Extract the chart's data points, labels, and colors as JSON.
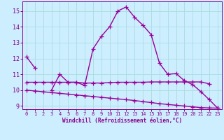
{
  "x": [
    0,
    1,
    2,
    3,
    4,
    5,
    6,
    7,
    8,
    9,
    10,
    11,
    12,
    13,
    14,
    15,
    16,
    17,
    18,
    19,
    20,
    21,
    22,
    23
  ],
  "line1": [
    12.1,
    11.4,
    null,
    10.0,
    11.0,
    10.5,
    10.5,
    10.3,
    12.6,
    13.4,
    14.0,
    15.0,
    15.25,
    14.6,
    14.1,
    13.5,
    11.7,
    11.0,
    11.05,
    10.6,
    10.35,
    9.9,
    9.4,
    8.87
  ],
  "line2": [
    10.5,
    10.5,
    10.5,
    10.5,
    10.5,
    10.5,
    10.5,
    10.45,
    10.45,
    10.45,
    10.48,
    10.5,
    10.5,
    10.5,
    10.5,
    10.52,
    10.52,
    10.52,
    10.52,
    10.52,
    10.52,
    10.52,
    10.4,
    null
  ],
  "line3": [
    10.0,
    9.95,
    9.9,
    9.85,
    9.8,
    9.75,
    9.7,
    9.65,
    9.6,
    9.55,
    9.5,
    9.45,
    9.4,
    9.35,
    9.28,
    9.22,
    9.15,
    9.1,
    9.05,
    9.0,
    8.95,
    8.9,
    8.88,
    8.87
  ],
  "line_color": "#990099",
  "bg_color": "#cceeff",
  "grid_color": "#aadddd",
  "xlim": [
    -0.5,
    23.5
  ],
  "ylim": [
    8.8,
    15.6
  ],
  "yticks": [
    9,
    10,
    11,
    12,
    13,
    14,
    15
  ],
  "xticks": [
    0,
    1,
    2,
    3,
    4,
    5,
    6,
    7,
    8,
    9,
    10,
    11,
    12,
    13,
    14,
    15,
    16,
    17,
    18,
    19,
    20,
    21,
    22,
    23
  ],
  "xlabel": "Windchill (Refroidissement éolien,°C)",
  "font_color": "#880088",
  "marker": "+",
  "linewidth": 1.0,
  "markersize": 4
}
